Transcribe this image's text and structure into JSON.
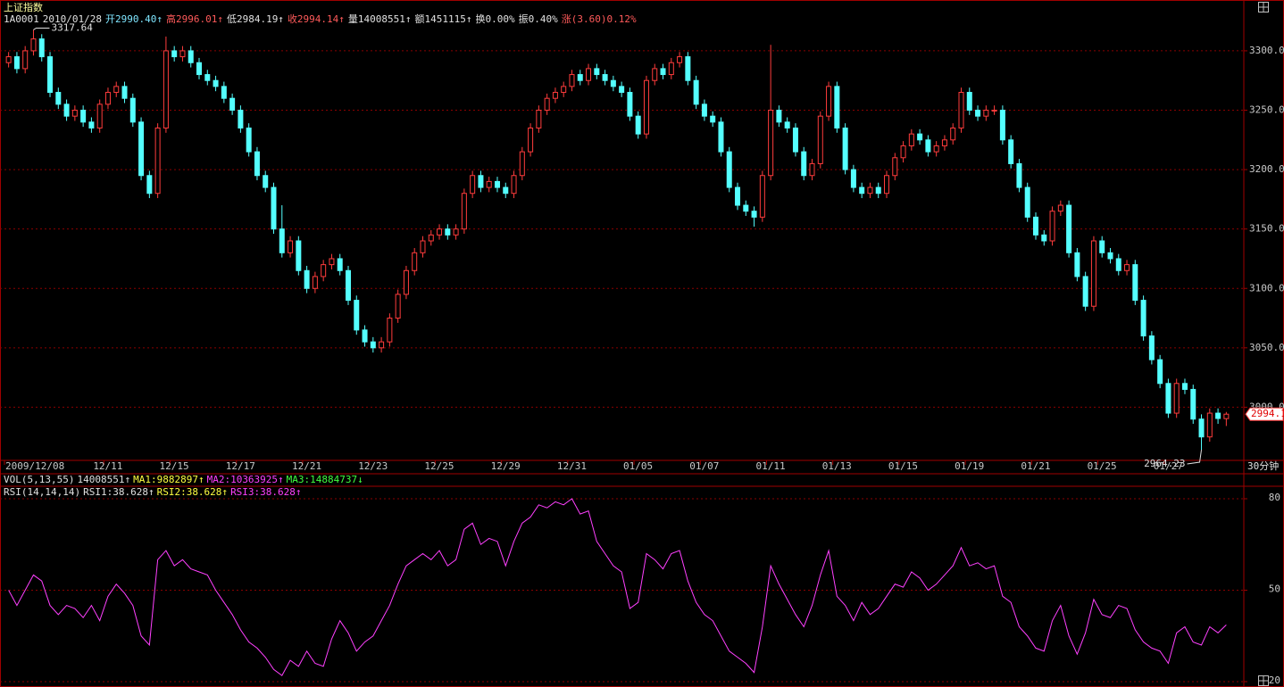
{
  "chart_data": [
    {
      "type": "candlestick",
      "title": "上证指数",
      "code": "1A0001",
      "date": "2010/01/28",
      "quote": [
        {
          "text": "开2990.40↑",
          "color": "#7fe6ff"
        },
        {
          "text": "高2996.01↑",
          "color": "#ff5a5a"
        },
        {
          "text": "低2984.19↑",
          "color": "#e0e0e0"
        },
        {
          "text": "收2994.14↑",
          "color": "#ff5a5a"
        },
        {
          "text": "量14008551↑",
          "color": "#e0e0e0"
        },
        {
          "text": "额1451115↑",
          "color": "#e0e0e0"
        },
        {
          "text": "换0.00%",
          "color": "#e0e0e0"
        },
        {
          "text": "振0.40%",
          "color": "#e0e0e0"
        },
        {
          "text": "涨(3.60)0.12%",
          "color": "#ff5a5a"
        }
      ],
      "up_color": "#ff3c3c",
      "down_color": "#54ffff",
      "xlim": [
        0,
        148
      ],
      "xticks": [
        {
          "value": 0,
          "label": "2009/12/08"
        },
        {
          "value": 12,
          "label": "12/11"
        },
        {
          "value": 20,
          "label": "12/15"
        },
        {
          "value": 28,
          "label": "12/17"
        },
        {
          "value": 36,
          "label": "12/21"
        },
        {
          "value": 44,
          "label": "12/23"
        },
        {
          "value": 52,
          "label": "12/25"
        },
        {
          "value": 60,
          "label": "12/29"
        },
        {
          "value": 68,
          "label": "12/31"
        },
        {
          "value": 76,
          "label": "01/05"
        },
        {
          "value": 84,
          "label": "01/07"
        },
        {
          "value": 92,
          "label": "01/11"
        },
        {
          "value": 100,
          "label": "01/13"
        },
        {
          "value": 108,
          "label": "01/15"
        },
        {
          "value": 116,
          "label": "01/19"
        },
        {
          "value": 124,
          "label": "01/21"
        },
        {
          "value": 132,
          "label": "01/25"
        },
        {
          "value": 140,
          "label": "01/27"
        }
      ],
      "period": "30分钟",
      "ylim": [
        2956,
        3339
      ],
      "yticks": [
        {
          "value": 3000,
          "label": "3000.00"
        },
        {
          "value": 3050,
          "label": "3050.00"
        },
        {
          "value": 3100,
          "label": "3100.00"
        },
        {
          "value": 3150,
          "label": "3150.00"
        },
        {
          "value": 3200,
          "label": "3200.00"
        },
        {
          "value": 3250,
          "label": "3250.00"
        },
        {
          "value": 3300,
          "label": "3300.00"
        }
      ],
      "grid": true,
      "last_close_tag": "2994.1",
      "open": [
        3290,
        3295,
        3285,
        3300,
        3310,
        3295,
        3265,
        3255,
        3245,
        3250,
        3240,
        3235,
        3255,
        3265,
        3270,
        3260,
        3240,
        3195,
        3180,
        3235,
        3300,
        3295,
        3300,
        3290,
        3280,
        3275,
        3270,
        3260,
        3250,
        3235,
        3215,
        3195,
        3185,
        3150,
        3130,
        3140,
        3115,
        3100,
        3110,
        3120,
        3125,
        3115,
        3090,
        3065,
        3055,
        3050,
        3055,
        3075,
        3095,
        3115,
        3130,
        3140,
        3145,
        3150,
        3145,
        3150,
        3180,
        3195,
        3185,
        3190,
        3185,
        3180,
        3195,
        3215,
        3235,
        3250,
        3260,
        3265,
        3270,
        3280,
        3275,
        3285,
        3280,
        3275,
        3270,
        3265,
        3245,
        3230,
        3275,
        3285,
        3280,
        3290,
        3295,
        3275,
        3255,
        3245,
        3240,
        3215,
        3185,
        3170,
        3165,
        3160,
        3195,
        3250,
        3240,
        3235,
        3215,
        3195,
        3205,
        3245,
        3270,
        3235,
        3200,
        3185,
        3180,
        3185,
        3180,
        3195,
        3210,
        3220,
        3230,
        3225,
        3215,
        3220,
        3225,
        3235,
        3265,
        3250,
        3245,
        3250,
        3250,
        3225,
        3205,
        3185,
        3160,
        3145,
        3140,
        3165,
        3170,
        3130,
        3110,
        3085,
        3140,
        3130,
        3125,
        3115,
        3120,
        3090,
        3060,
        3040,
        3020,
        2995,
        3020,
        3015,
        2990,
        2975,
        2995,
        2990.4
      ],
      "high": [
        3299,
        3299,
        3304,
        3317.64,
        3314,
        3299,
        3269,
        3259,
        3254,
        3254,
        3244,
        3259,
        3269,
        3274,
        3274,
        3264,
        3244,
        3199,
        3239,
        3312,
        3304,
        3304,
        3304,
        3294,
        3284,
        3279,
        3274,
        3264,
        3254,
        3239,
        3219,
        3199,
        3189,
        3170,
        3144,
        3144,
        3119,
        3114,
        3124,
        3129,
        3129,
        3119,
        3094,
        3069,
        3059,
        3059,
        3079,
        3099,
        3119,
        3134,
        3144,
        3149,
        3154,
        3154,
        3154,
        3184,
        3199,
        3199,
        3194,
        3194,
        3189,
        3199,
        3219,
        3239,
        3254,
        3264,
        3269,
        3274,
        3284,
        3284,
        3289,
        3289,
        3284,
        3279,
        3274,
        3269,
        3249,
        3279,
        3289,
        3289,
        3294,
        3299,
        3299,
        3279,
        3259,
        3249,
        3244,
        3219,
        3189,
        3174,
        3169,
        3199,
        3305,
        3254,
        3244,
        3239,
        3219,
        3209,
        3249,
        3274,
        3274,
        3239,
        3204,
        3189,
        3189,
        3189,
        3199,
        3214,
        3224,
        3234,
        3234,
        3229,
        3224,
        3229,
        3239,
        3269,
        3269,
        3254,
        3254,
        3254,
        3254,
        3229,
        3209,
        3189,
        3164,
        3149,
        3169,
        3174,
        3174,
        3134,
        3114,
        3144,
        3144,
        3134,
        3129,
        3124,
        3124,
        3094,
        3064,
        3044,
        3024,
        3024,
        3024,
        3019,
        2994,
        2999,
        2999,
        2996.01
      ],
      "low": [
        3286,
        3281,
        3281,
        3296,
        3291,
        3261,
        3251,
        3241,
        3241,
        3236,
        3231,
        3231,
        3251,
        3261,
        3256,
        3236,
        3191,
        3176,
        3176,
        3231,
        3291,
        3291,
        3286,
        3276,
        3271,
        3266,
        3256,
        3246,
        3231,
        3211,
        3191,
        3181,
        3146,
        3126,
        3126,
        3111,
        3096,
        3096,
        3106,
        3116,
        3111,
        3086,
        3061,
        3051,
        3046,
        3046,
        3051,
        3071,
        3091,
        3111,
        3126,
        3136,
        3141,
        3141,
        3141,
        3146,
        3176,
        3181,
        3181,
        3181,
        3176,
        3176,
        3191,
        3211,
        3231,
        3246,
        3256,
        3261,
        3266,
        3271,
        3271,
        3276,
        3271,
        3266,
        3261,
        3241,
        3226,
        3226,
        3271,
        3276,
        3276,
        3286,
        3271,
        3251,
        3241,
        3236,
        3211,
        3181,
        3166,
        3161,
        3152,
        3156,
        3191,
        3236,
        3231,
        3211,
        3191,
        3191,
        3201,
        3241,
        3231,
        3196,
        3181,
        3176,
        3176,
        3176,
        3176,
        3191,
        3206,
        3216,
        3221,
        3211,
        3211,
        3216,
        3221,
        3231,
        3246,
        3241,
        3241,
        3246,
        3221,
        3201,
        3181,
        3156,
        3141,
        3136,
        3136,
        3161,
        3126,
        3106,
        3081,
        3081,
        3126,
        3121,
        3111,
        3111,
        3086,
        3056,
        3036,
        3016,
        2991,
        2991,
        3011,
        2986,
        2964.23,
        2971,
        2986,
        2984.19
      ],
      "close": [
        3295,
        3285,
        3300,
        3310,
        3295,
        3265,
        3255,
        3245,
        3250,
        3240,
        3235,
        3255,
        3265,
        3270,
        3260,
        3240,
        3195,
        3180,
        3235,
        3300,
        3295,
        3300,
        3290,
        3280,
        3275,
        3270,
        3260,
        3250,
        3235,
        3215,
        3195,
        3185,
        3150,
        3130,
        3140,
        3115,
        3100,
        3110,
        3120,
        3125,
        3115,
        3090,
        3065,
        3055,
        3050,
        3055,
        3075,
        3095,
        3115,
        3130,
        3140,
        3145,
        3150,
        3145,
        3150,
        3180,
        3195,
        3185,
        3190,
        3185,
        3180,
        3195,
        3215,
        3235,
        3250,
        3260,
        3265,
        3270,
        3280,
        3275,
        3285,
        3280,
        3275,
        3270,
        3265,
        3245,
        3230,
        3275,
        3285,
        3280,
        3290,
        3295,
        3275,
        3255,
        3245,
        3240,
        3215,
        3185,
        3170,
        3165,
        3160,
        3195,
        3250,
        3240,
        3235,
        3215,
        3195,
        3205,
        3245,
        3270,
        3235,
        3200,
        3185,
        3180,
        3185,
        3180,
        3195,
        3210,
        3220,
        3230,
        3225,
        3215,
        3220,
        3225,
        3235,
        3265,
        3250,
        3245,
        3250,
        3250,
        3225,
        3205,
        3185,
        3160,
        3145,
        3140,
        3165,
        3170,
        3130,
        3110,
        3085,
        3140,
        3130,
        3125,
        3115,
        3120,
        3090,
        3060,
        3040,
        3020,
        2995,
        3020,
        3015,
        2990,
        2975,
        2995,
        2990.54,
        2994.14
      ]
    },
    {
      "type": "volume",
      "title": "VOL(5,13,55)",
      "items": [
        {
          "text": "14008551↑",
          "color": "#e0e0e0"
        },
        {
          "text": "MA1:9882897↑",
          "color": "#ffff40"
        },
        {
          "text": "MA2:10363925↑",
          "color": "#ff40ff"
        },
        {
          "text": "MA3:14884737↓",
          "color": "#40ff40"
        }
      ]
    },
    {
      "type": "line",
      "title": "RSI(14,14,14)",
      "items": [
        {
          "text": "RSI1:38.628↑",
          "color": "#e0e0e0"
        },
        {
          "text": "RSI2:38.628↑",
          "color": "#ffff40"
        },
        {
          "text": "RSI3:38.628↑",
          "color": "#ff40ff"
        }
      ],
      "xlim": [
        0,
        148
      ],
      "ylim": [
        19.7,
        84.1
      ],
      "yticks": [
        20,
        50,
        80
      ],
      "grid": true,
      "series": [
        {
          "color": "#ff40ff",
          "values": [
            50,
            45,
            50,
            55,
            53,
            45,
            42,
            45,
            44,
            41,
            45,
            40,
            48,
            52,
            49,
            45,
            35,
            32,
            60,
            63,
            58,
            60,
            57,
            56,
            55,
            50,
            46,
            42,
            37,
            33,
            31,
            28,
            24,
            22,
            27,
            25,
            30,
            26,
            25,
            34,
            40,
            36,
            30,
            33,
            35,
            40,
            45,
            52,
            58,
            60,
            62,
            60,
            63,
            58,
            60,
            70,
            72,
            65,
            67,
            66,
            58,
            66,
            72,
            74,
            78,
            77,
            79,
            78,
            80,
            75,
            76,
            66,
            62,
            58,
            56,
            44,
            46,
            62,
            60,
            57,
            62,
            63,
            53,
            46,
            42,
            40,
            35,
            30,
            28,
            26,
            23,
            38,
            58,
            52,
            47,
            42,
            38,
            45,
            55,
            63,
            48,
            45,
            40,
            46,
            42,
            44,
            48,
            52,
            51,
            56,
            54,
            50,
            52,
            55,
            58,
            64,
            58,
            59,
            57,
            58,
            48,
            46,
            38,
            35,
            31,
            30,
            40,
            45,
            35,
            29,
            36,
            47,
            42,
            41,
            45,
            44,
            37,
            33,
            31,
            30,
            26,
            36,
            38,
            33,
            32,
            38,
            36,
            38.628
          ]
        }
      ]
    }
  ]
}
